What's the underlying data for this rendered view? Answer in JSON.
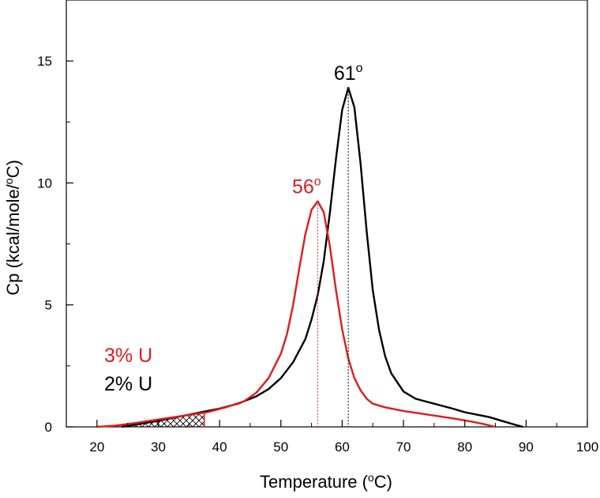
{
  "chart_data": {
    "type": "line",
    "title": "",
    "xlabel": "Temperature (",
    "xlabel_unit": "C)",
    "xlabel_degree": "o",
    "ylabel": "Cp (kcal/mole/",
    "ylabel_unit": "C)",
    "ylabel_degree": "o",
    "xlim": [
      15,
      100
    ],
    "ylim": [
      0,
      17.5
    ],
    "xticks": [
      20,
      30,
      40,
      50,
      60,
      70,
      80,
      90,
      100
    ],
    "yticks": [
      0,
      5,
      10,
      15
    ],
    "grid": false,
    "legend": [
      {
        "label": "3% U",
        "color": "#e31a1c"
      },
      {
        "label": "2% U",
        "color": "#000000"
      }
    ],
    "series": [
      {
        "name": "2% U",
        "color": "#000000",
        "x": [
          24,
          27,
          30,
          33,
          36,
          40,
          43,
          46,
          48,
          50,
          52,
          54,
          55,
          56,
          57,
          58,
          59,
          60,
          61,
          62,
          63,
          64,
          65,
          66,
          67,
          68,
          70,
          72,
          75,
          78,
          80,
          82,
          84,
          86,
          88,
          89.5
        ],
        "y": [
          0.0,
          0.12,
          0.25,
          0.4,
          0.55,
          0.75,
          0.95,
          1.25,
          1.55,
          2.0,
          2.65,
          3.6,
          4.4,
          5.4,
          6.8,
          8.8,
          11.0,
          13.0,
          13.9,
          13.1,
          10.8,
          8.0,
          5.6,
          4.0,
          2.9,
          2.2,
          1.45,
          1.15,
          0.95,
          0.75,
          0.6,
          0.5,
          0.4,
          0.25,
          0.1,
          0.0
        ]
      },
      {
        "name": "3% U",
        "color": "#e31a1c",
        "x": [
          20,
          23,
          26,
          30,
          34,
          38,
          41,
          44,
          46,
          48,
          50,
          51,
          52,
          53,
          54,
          55,
          56,
          57,
          58,
          59,
          60,
          61,
          62,
          63,
          64,
          65,
          67,
          70,
          74,
          78,
          81,
          83,
          85
        ],
        "y": [
          0.0,
          0.05,
          0.15,
          0.3,
          0.45,
          0.6,
          0.8,
          1.05,
          1.4,
          2.0,
          3.0,
          3.8,
          5.0,
          6.5,
          7.9,
          8.9,
          9.25,
          8.8,
          7.4,
          5.6,
          4.0,
          2.8,
          2.0,
          1.5,
          1.15,
          0.95,
          0.8,
          0.65,
          0.5,
          0.35,
          0.22,
          0.12,
          0.0
        ]
      }
    ],
    "annotations": [
      {
        "text": "61",
        "sup": "o",
        "x": 61,
        "y": 13.9,
        "color": "#000000"
      },
      {
        "text": "56",
        "sup": "o",
        "x": 56,
        "y": 9.25,
        "color": "#e31a1c"
      }
    ],
    "hatched_region": {
      "x_start": 23,
      "x_end": 37.5
    }
  }
}
